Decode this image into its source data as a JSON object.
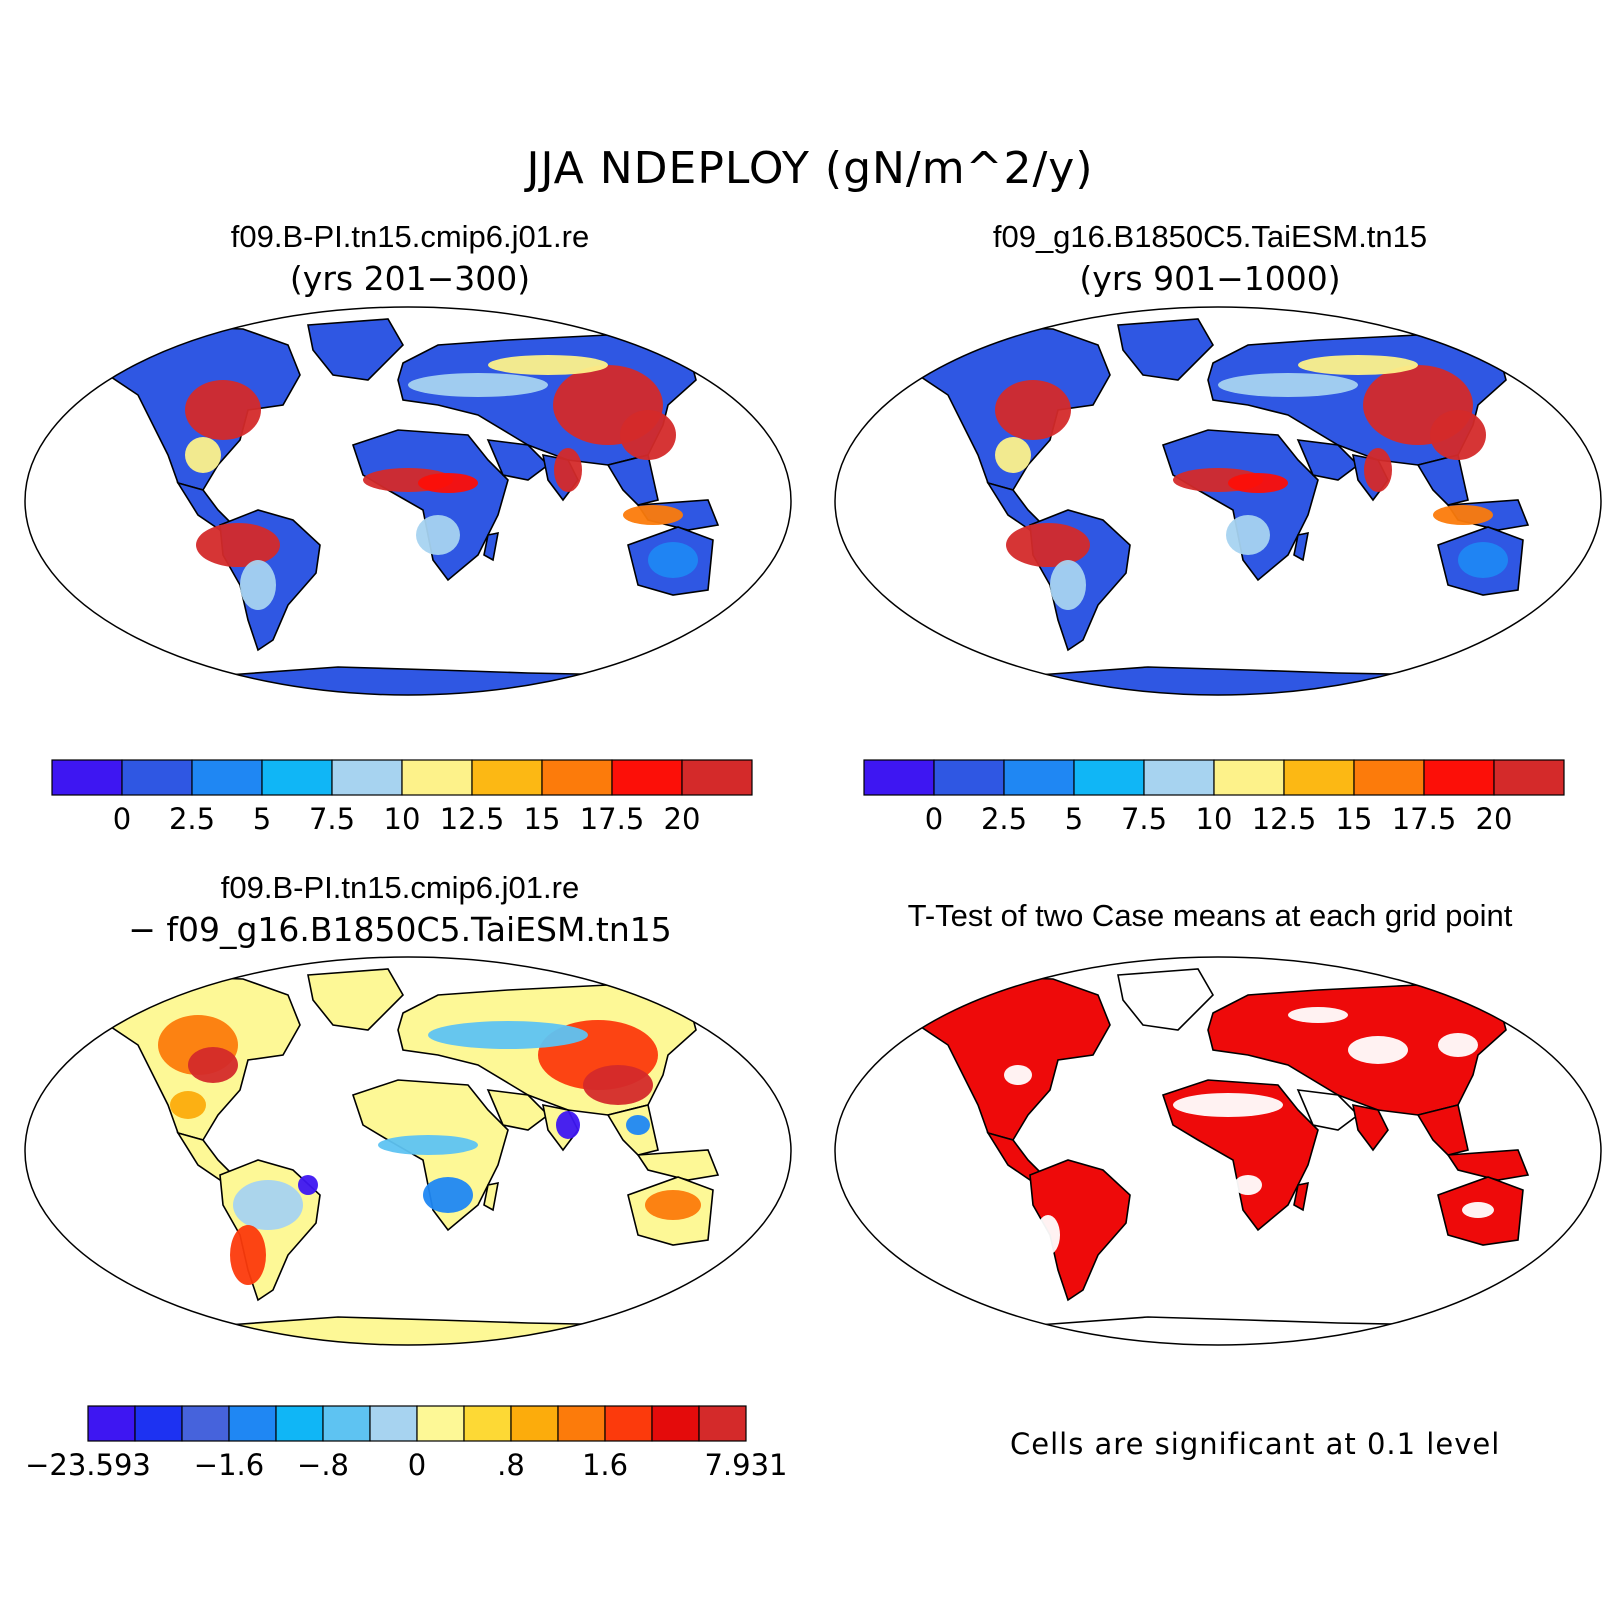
{
  "title": "JJA NDEPLOY (gN/m^2/y)",
  "panels": [
    {
      "id": "case1",
      "title": "f09.B-PI.tn15.cmip6.j01.re",
      "subtitle": "(yrs 201−300)"
    },
    {
      "id": "case2",
      "title": "f09_g16.B1850C5.TaiESM.tn15",
      "subtitle": "(yrs 901−1000)"
    },
    {
      "id": "diff",
      "title": "f09.B-PI.tn15.cmip6.j01.re",
      "subtitle": "− f09_g16.B1850C5.TaiESM.tn15"
    },
    {
      "id": "ttest",
      "title": "T-Test of two Case means at each grid point",
      "subtitle": ""
    }
  ],
  "colorbars": {
    "case": {
      "colors": [
        "#3e16f2",
        "#2f57e3",
        "#1f87f3",
        "#10b6f6",
        "#a7d3f0",
        "#fdf28a",
        "#fcb814",
        "#fc7b0b",
        "#fc0f08",
        "#d42a2a"
      ],
      "labels": [
        "0",
        "2.5",
        "5",
        "7.5",
        "10",
        "12.5",
        "15",
        "17.5",
        "20"
      ]
    },
    "diff": {
      "colors": [
        "#3e16f2",
        "#1d32f2",
        "#4663dc",
        "#1f87f3",
        "#10b6f6",
        "#5ec3f2",
        "#a7d3f0",
        "#fdf896",
        "#fdd935",
        "#fcac0c",
        "#fc7b0b",
        "#fc3a0c",
        "#e40b0b",
        "#d42a2a"
      ],
      "labels": [
        "−23.593",
        "−1.6",
        "−.8",
        "0",
        ".8",
        "1.6",
        "7.931"
      ]
    }
  },
  "significance_note": "Cells are significant at 0.1 level"
}
